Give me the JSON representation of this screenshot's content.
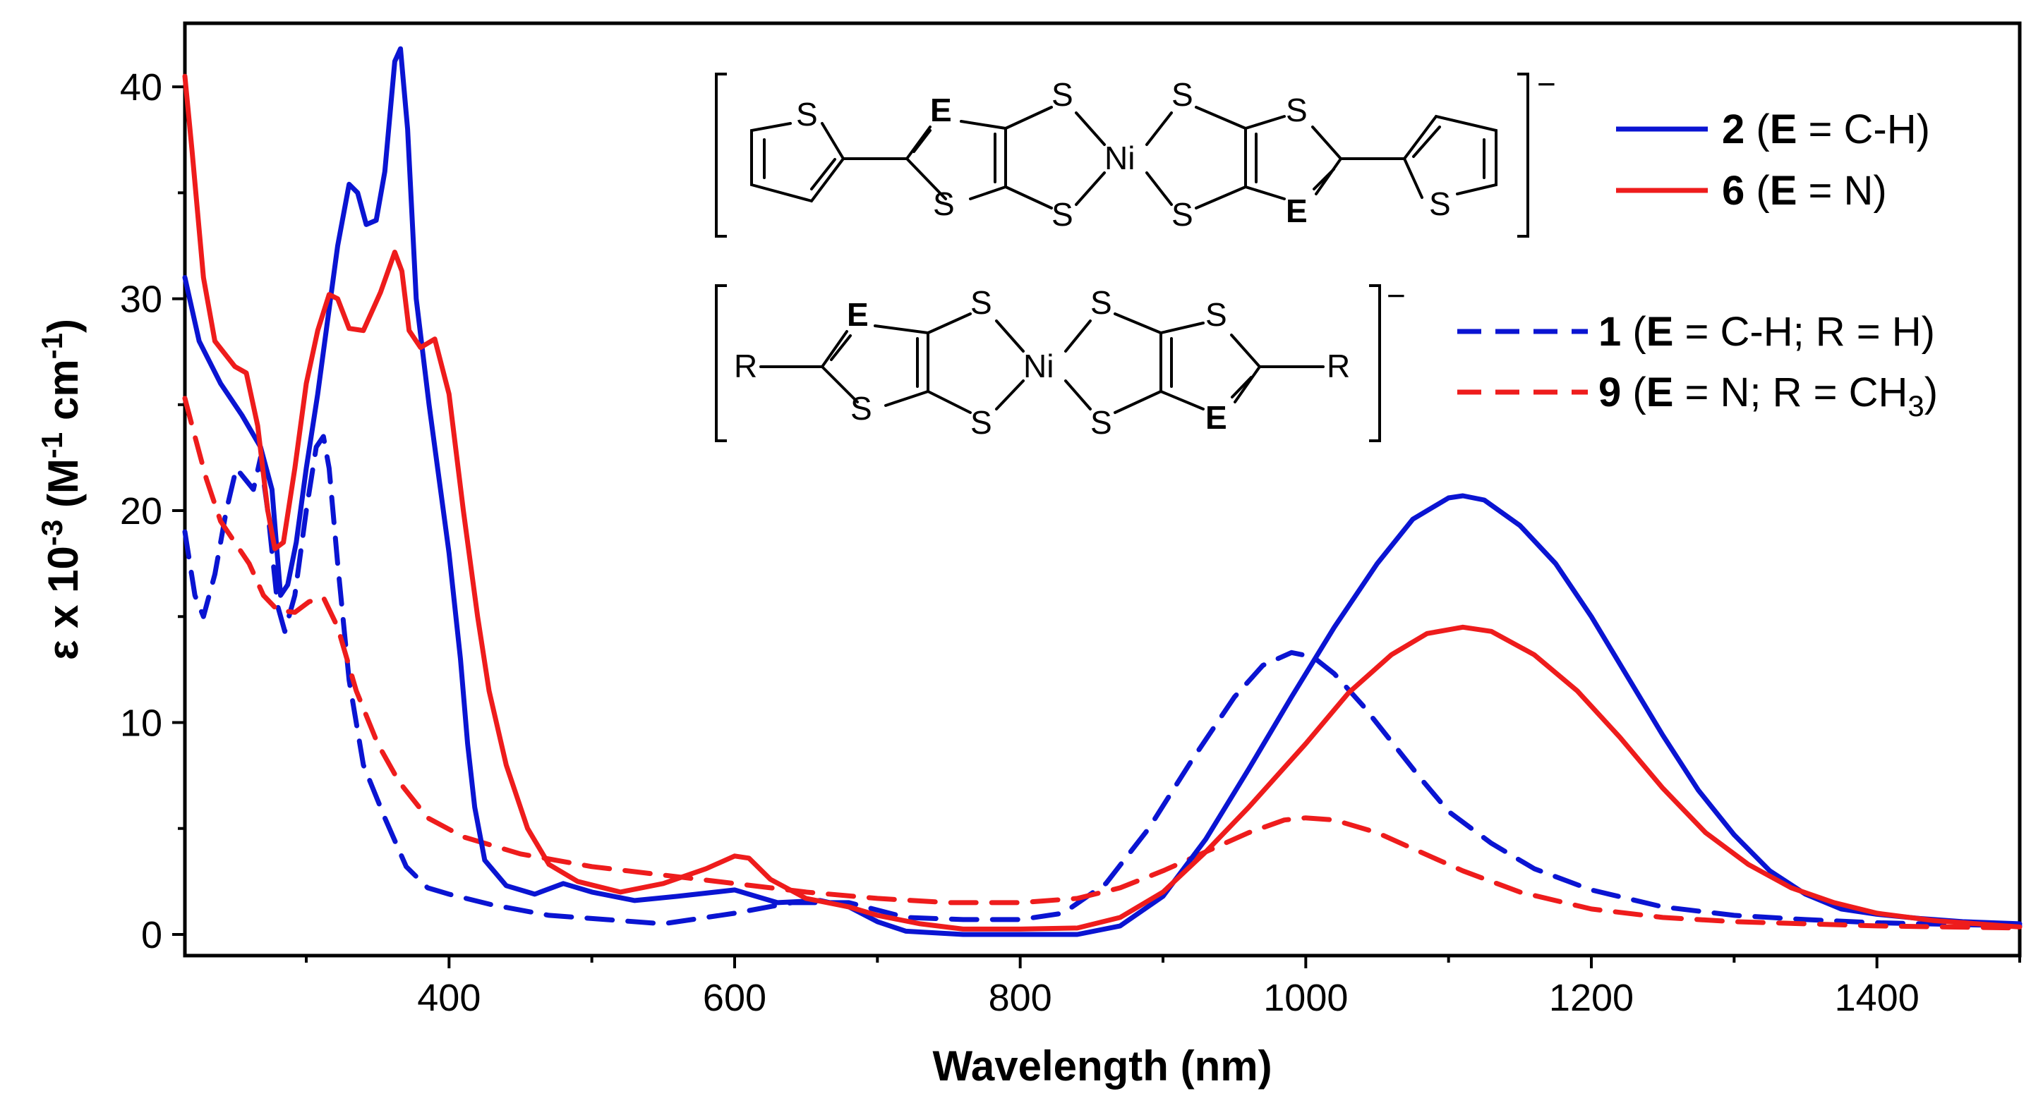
{
  "chart_data": {
    "type": "line",
    "title": "",
    "xlabel": "Wavelength (nm)",
    "ylabel_parts": [
      "ε x 10",
      "-3",
      " (M",
      "-1",
      " cm",
      "-1",
      ")"
    ],
    "xlim": [
      215,
      1500
    ],
    "ylim": [
      -1,
      43
    ],
    "x_ticks": [
      400,
      600,
      800,
      1000,
      1200,
      1400
    ],
    "y_ticks": [
      0,
      10,
      20,
      30,
      40
    ],
    "grid": false,
    "legend_placement": "top-right",
    "series": [
      {
        "id": "s2",
        "name": "2 (E = C-H)",
        "legend_parts": [
          "2",
          " (",
          "E",
          " = C-H)"
        ],
        "color": "#0a14d2",
        "dash": "solid",
        "points": [
          [
            215,
            31
          ],
          [
            225,
            28
          ],
          [
            240,
            26
          ],
          [
            255,
            24.5
          ],
          [
            268,
            23
          ],
          [
            276,
            21
          ],
          [
            282,
            16
          ],
          [
            287,
            16.5
          ],
          [
            293,
            18.5
          ],
          [
            300,
            22
          ],
          [
            308,
            25.5
          ],
          [
            315,
            29
          ],
          [
            322,
            32.5
          ],
          [
            330,
            35.4
          ],
          [
            336,
            35
          ],
          [
            342,
            33.5
          ],
          [
            349,
            33.7
          ],
          [
            355,
            36
          ],
          [
            362,
            41.2
          ],
          [
            366,
            41.8
          ],
          [
            371,
            38
          ],
          [
            377,
            30
          ],
          [
            386,
            25
          ],
          [
            394,
            21
          ],
          [
            400,
            18
          ],
          [
            408,
            13
          ],
          [
            413,
            9
          ],
          [
            418,
            6
          ],
          [
            425,
            3.5
          ],
          [
            440,
            2.3
          ],
          [
            460,
            1.9
          ],
          [
            480,
            2.4
          ],
          [
            500,
            2.0
          ],
          [
            530,
            1.6
          ],
          [
            560,
            1.8
          ],
          [
            600,
            2.1
          ],
          [
            630,
            1.5
          ],
          [
            660,
            1.6
          ],
          [
            680,
            1.3
          ],
          [
            700,
            0.6
          ],
          [
            720,
            0.15
          ],
          [
            760,
            0
          ],
          [
            800,
            0
          ],
          [
            840,
            0
          ],
          [
            870,
            0.4
          ],
          [
            900,
            1.8
          ],
          [
            930,
            4.5
          ],
          [
            960,
            7.8
          ],
          [
            990,
            11.2
          ],
          [
            1020,
            14.5
          ],
          [
            1050,
            17.5
          ],
          [
            1075,
            19.6
          ],
          [
            1100,
            20.6
          ],
          [
            1110,
            20.7
          ],
          [
            1125,
            20.5
          ],
          [
            1150,
            19.3
          ],
          [
            1175,
            17.5
          ],
          [
            1200,
            15
          ],
          [
            1225,
            12.2
          ],
          [
            1250,
            9.4
          ],
          [
            1275,
            6.8
          ],
          [
            1300,
            4.7
          ],
          [
            1325,
            3.0
          ],
          [
            1350,
            1.9
          ],
          [
            1375,
            1.2
          ],
          [
            1400,
            0.95
          ],
          [
            1430,
            0.75
          ],
          [
            1460,
            0.6
          ],
          [
            1500,
            0.5
          ]
        ]
      },
      {
        "id": "s6",
        "name": "6 (E = N)",
        "legend_parts": [
          "6",
          " (",
          "E",
          " = N)"
        ],
        "color": "#ee1c1c",
        "dash": "solid",
        "points": [
          [
            215,
            40.5
          ],
          [
            220,
            37
          ],
          [
            228,
            31
          ],
          [
            236,
            28
          ],
          [
            250,
            26.8
          ],
          [
            258,
            26.5
          ],
          [
            266,
            24
          ],
          [
            273,
            20
          ],
          [
            278,
            18.2
          ],
          [
            284,
            18.5
          ],
          [
            292,
            22
          ],
          [
            300,
            26
          ],
          [
            308,
            28.5
          ],
          [
            316,
            30.2
          ],
          [
            322,
            30
          ],
          [
            330,
            28.6
          ],
          [
            340,
            28.5
          ],
          [
            352,
            30.3
          ],
          [
            362,
            32.2
          ],
          [
            367,
            31.3
          ],
          [
            372,
            28.5
          ],
          [
            380,
            27.7
          ],
          [
            390,
            28.1
          ],
          [
            400,
            25.5
          ],
          [
            410,
            20
          ],
          [
            420,
            15
          ],
          [
            428,
            11.5
          ],
          [
            440,
            8
          ],
          [
            455,
            5
          ],
          [
            470,
            3.3
          ],
          [
            490,
            2.5
          ],
          [
            520,
            2.0
          ],
          [
            550,
            2.4
          ],
          [
            580,
            3.1
          ],
          [
            600,
            3.7
          ],
          [
            610,
            3.6
          ],
          [
            625,
            2.6
          ],
          [
            650,
            1.7
          ],
          [
            680,
            1.3
          ],
          [
            700,
            0.9
          ],
          [
            730,
            0.5
          ],
          [
            760,
            0.25
          ],
          [
            800,
            0.25
          ],
          [
            840,
            0.3
          ],
          [
            870,
            0.8
          ],
          [
            900,
            2.0
          ],
          [
            930,
            3.9
          ],
          [
            960,
            6.0
          ],
          [
            1000,
            9.0
          ],
          [
            1030,
            11.4
          ],
          [
            1060,
            13.2
          ],
          [
            1085,
            14.2
          ],
          [
            1110,
            14.5
          ],
          [
            1130,
            14.3
          ],
          [
            1160,
            13.2
          ],
          [
            1190,
            11.5
          ],
          [
            1220,
            9.3
          ],
          [
            1250,
            6.9
          ],
          [
            1280,
            4.8
          ],
          [
            1310,
            3.3
          ],
          [
            1340,
            2.2
          ],
          [
            1370,
            1.5
          ],
          [
            1400,
            1.0
          ],
          [
            1440,
            0.65
          ],
          [
            1500,
            0.35
          ]
        ]
      },
      {
        "id": "s1",
        "name": "1 (E = C-H; R = H)",
        "legend_parts": [
          "1",
          " (",
          "E",
          " = C-H; R = H)"
        ],
        "color": "#0a14d2",
        "dash": "dashed",
        "points": [
          [
            215,
            19
          ],
          [
            222,
            16
          ],
          [
            228,
            15
          ],
          [
            236,
            17
          ],
          [
            244,
            20
          ],
          [
            251,
            22
          ],
          [
            257,
            21.5
          ],
          [
            263,
            21
          ],
          [
            268,
            22.5
          ],
          [
            273,
            20
          ],
          [
            280,
            15.5
          ],
          [
            285,
            14.3
          ],
          [
            292,
            16
          ],
          [
            300,
            20
          ],
          [
            307,
            23
          ],
          [
            312,
            23.5
          ],
          [
            316,
            22
          ],
          [
            322,
            17.5
          ],
          [
            330,
            12
          ],
          [
            340,
            8
          ],
          [
            355,
            5.5
          ],
          [
            370,
            3.2
          ],
          [
            385,
            2.2
          ],
          [
            400,
            1.9
          ],
          [
            430,
            1.4
          ],
          [
            470,
            0.9
          ],
          [
            510,
            0.7
          ],
          [
            550,
            0.5
          ],
          [
            600,
            1.0
          ],
          [
            640,
            1.5
          ],
          [
            680,
            1.5
          ],
          [
            720,
            0.8
          ],
          [
            760,
            0.7
          ],
          [
            800,
            0.7
          ],
          [
            830,
            1.0
          ],
          [
            860,
            2.4
          ],
          [
            890,
            5.0
          ],
          [
            920,
            8.2
          ],
          [
            950,
            11.2
          ],
          [
            970,
            12.7
          ],
          [
            990,
            13.3
          ],
          [
            1005,
            13.1
          ],
          [
            1020,
            12.3
          ],
          [
            1040,
            10.8
          ],
          [
            1060,
            9.1
          ],
          [
            1080,
            7.4
          ],
          [
            1100,
            5.8
          ],
          [
            1130,
            4.3
          ],
          [
            1160,
            3.1
          ],
          [
            1200,
            2.1
          ],
          [
            1250,
            1.3
          ],
          [
            1300,
            0.9
          ],
          [
            1350,
            0.7
          ],
          [
            1400,
            0.55
          ],
          [
            1500,
            0.4
          ]
        ]
      },
      {
        "id": "s9",
        "name": "9 (E = N; R = CH3)",
        "legend_parts": [
          "9",
          " (",
          "E",
          " = N; R = CH",
          "3",
          ")"
        ],
        "color": "#ee1c1c",
        "dash": "dashed",
        "points": [
          [
            215,
            25.3
          ],
          [
            222,
            23.5
          ],
          [
            230,
            21.5
          ],
          [
            240,
            19.5
          ],
          [
            250,
            18.5
          ],
          [
            260,
            17.5
          ],
          [
            270,
            16
          ],
          [
            280,
            15.3
          ],
          [
            292,
            15.2
          ],
          [
            302,
            15.7
          ],
          [
            312,
            15.9
          ],
          [
            322,
            14.5
          ],
          [
            335,
            11.5
          ],
          [
            350,
            9
          ],
          [
            365,
            7.2
          ],
          [
            385,
            5.5
          ],
          [
            410,
            4.6
          ],
          [
            450,
            3.8
          ],
          [
            500,
            3.2
          ],
          [
            550,
            2.8
          ],
          [
            600,
            2.4
          ],
          [
            650,
            2.0
          ],
          [
            700,
            1.7
          ],
          [
            750,
            1.5
          ],
          [
            800,
            1.5
          ],
          [
            840,
            1.7
          ],
          [
            870,
            2.2
          ],
          [
            900,
            3.0
          ],
          [
            930,
            3.9
          ],
          [
            960,
            4.8
          ],
          [
            985,
            5.4
          ],
          [
            1000,
            5.5
          ],
          [
            1020,
            5.4
          ],
          [
            1050,
            4.8
          ],
          [
            1080,
            3.9
          ],
          [
            1110,
            3.0
          ],
          [
            1150,
            2.0
          ],
          [
            1200,
            1.2
          ],
          [
            1250,
            0.8
          ],
          [
            1300,
            0.6
          ],
          [
            1400,
            0.4
          ],
          [
            1500,
            0.3
          ]
        ]
      }
    ]
  },
  "structures": {
    "top": {
      "atoms": [
        "S",
        "E",
        "S",
        "S",
        "Ni",
        "S",
        "S",
        "S",
        "E",
        "S"
      ],
      "charge": "−"
    },
    "bottom": {
      "atoms": [
        "R",
        "E",
        "S",
        "S",
        "Ni",
        "S",
        "S",
        "S",
        "E",
        "R"
      ],
      "charge": "−"
    }
  }
}
